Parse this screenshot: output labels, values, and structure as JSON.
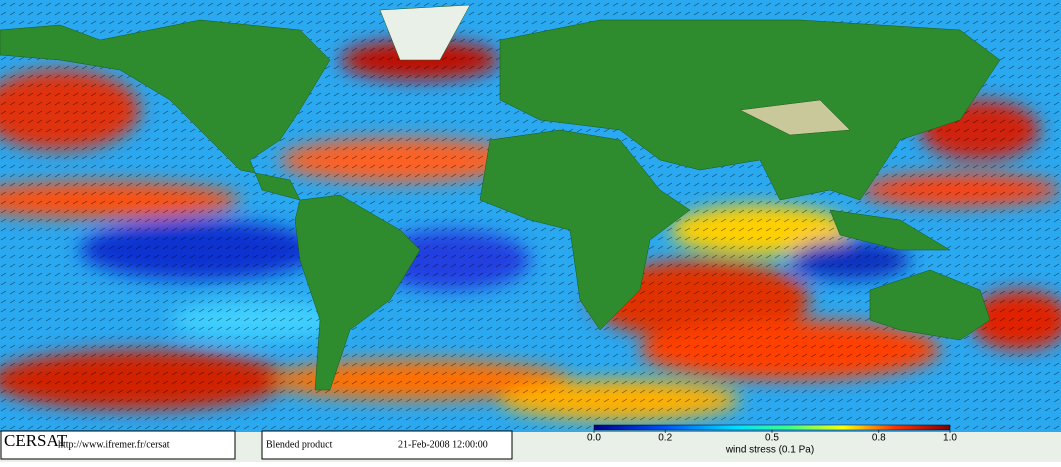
{
  "footer": {
    "brand": "CERSAT",
    "url": "http://www.ifremer.fr/cersat",
    "product": "Blended product",
    "date": "21-Feb-2008 12:00:00"
  },
  "colorbar": {
    "label": "wind stress (0.1 Pa)",
    "range": [
      0,
      1
    ],
    "ticks": [
      {
        "value": 0,
        "label": "0.0"
      },
      0.2,
      0.5,
      0.8,
      {
        "value": 1,
        "label": "1.0"
      }
    ]
  }
}
